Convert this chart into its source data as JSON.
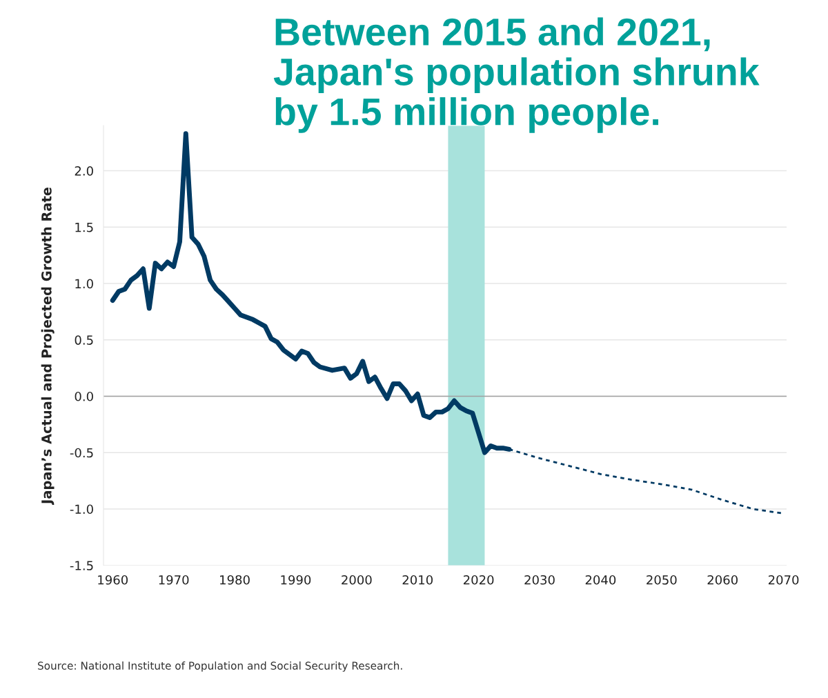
{
  "chart_data": {
    "type": "line",
    "title": "Between 2015 and 2021,\nJapan's population shrunk\nby 1.5 million people.",
    "ylabel": "Japan’s Actual and Projected Growth Rate",
    "annotations": [
      "Source: National Institute of Population and Social Security Research."
    ],
    "series": [
      {
        "color": "#003a63",
        "line_style": "solid",
        "x": [
          1960,
          1961,
          1962,
          1963,
          1964,
          1965,
          1966,
          1967,
          1968,
          1969,
          1970,
          1971,
          1972,
          1973,
          1974,
          1975,
          1976,
          1977,
          1978,
          1979,
          1980,
          1981,
          1982,
          1983,
          1984,
          1985,
          1986,
          1987,
          1988,
          1989,
          1990,
          1991,
          1992,
          1993,
          1994,
          1996,
          1998,
          1999,
          2000,
          2001,
          2002,
          2003,
          2004,
          2005,
          2006,
          2007,
          2008,
          2009,
          2010,
          2011,
          2012,
          2013,
          2014,
          2015,
          2016,
          2017,
          2018,
          2019,
          2021,
          2022,
          2023,
          2024,
          2025
        ],
        "values": [
          0.85,
          0.93,
          0.95,
          1.03,
          1.07,
          1.13,
          0.78,
          1.18,
          1.13,
          1.19,
          1.15,
          1.37,
          2.33,
          1.41,
          1.35,
          1.24,
          1.03,
          0.95,
          0.9,
          0.84,
          0.78,
          0.72,
          0.7,
          0.68,
          0.65,
          0.62,
          0.51,
          0.48,
          0.41,
          0.37,
          0.33,
          0.4,
          0.38,
          0.3,
          0.26,
          0.23,
          0.25,
          0.16,
          0.2,
          0.31,
          0.13,
          0.17,
          0.07,
          -0.02,
          0.11,
          0.11,
          0.05,
          -0.04,
          0.02,
          -0.17,
          -0.19,
          -0.14,
          -0.14,
          -0.11,
          -0.04,
          -0.1,
          -0.13,
          -0.15,
          -0.5,
          -0.44,
          -0.46,
          -0.46,
          -0.47
        ]
      },
      {
        "color": "#003a63",
        "line_style": "dashed",
        "x": [
          2025,
          2030,
          2035,
          2040,
          2045,
          2050,
          2055,
          2060,
          2065,
          2070
        ],
        "values": [
          -0.47,
          -0.55,
          -0.62,
          -0.69,
          -0.74,
          -0.78,
          -0.83,
          -0.92,
          -1.0,
          -1.04
        ]
      }
    ],
    "xlim": [
      1958.5,
      2070.5
    ],
    "xticks": [
      1960,
      1970,
      1980,
      1990,
      2000,
      2010,
      2020,
      2030,
      2040,
      2050,
      2060,
      2070
    ],
    "ylim": [
      -1.5,
      2.4
    ],
    "yticks": [
      {
        "value": -1.5,
        "label": "-1.5"
      },
      {
        "value": -1,
        "label": "-1.0"
      },
      {
        "value": -0.5,
        "label": "-0.5"
      },
      {
        "value": 0,
        "label": "0.0"
      },
      {
        "value": 0.5,
        "label": "0.5"
      },
      {
        "value": 1,
        "label": "1.0"
      },
      {
        "value": 1.5,
        "label": "1.5"
      },
      {
        "value": 2,
        "label": "2.0"
      }
    ],
    "grid": "y",
    "ref_lines": [
      {
        "axis": "y",
        "value": 0,
        "label": null,
        "color": "#a0a0a0"
      }
    ],
    "bands": [
      {
        "axis": "x",
        "from": 2015,
        "to": 2021,
        "label": null,
        "color": "#a8e2dc"
      }
    ]
  }
}
